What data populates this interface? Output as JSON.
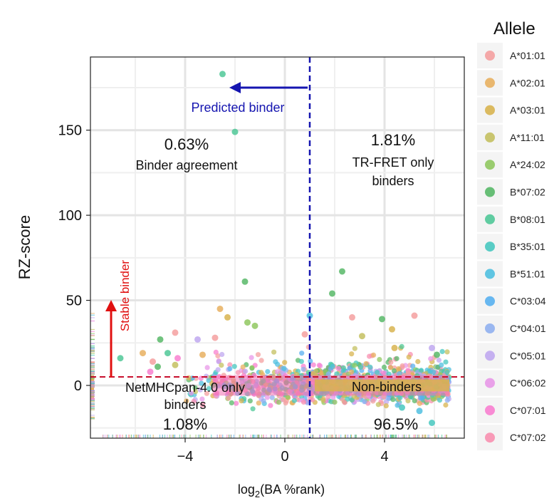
{
  "chart_data": {
    "type": "scatter",
    "title": "",
    "xlabel_main": "log",
    "xlabel_sub": "2",
    "xlabel_rest": "(BA %rank)",
    "ylabel": "RZ-score",
    "xlim": [
      -7.8,
      7.2
    ],
    "ylim": [
      -31,
      193
    ],
    "x_ticks": [
      -4,
      0,
      4
    ],
    "x_tick_labels": [
      "−4",
      "0",
      "4"
    ],
    "y_ticks": [
      0,
      50,
      100,
      150
    ],
    "y_tick_labels": [
      "0",
      "50",
      "100",
      "150"
    ],
    "grid": true,
    "thresholds": {
      "x": 1.0,
      "y": 5.0,
      "x_color": "#1515b0",
      "y_color": "#c8102e"
    },
    "legend": {
      "title": "Allele",
      "position": "right",
      "entries": [
        {
          "label": "A*01:01",
          "color": "#f4a0a0"
        },
        {
          "label": "A*02:01",
          "color": "#e8b060"
        },
        {
          "label": "A*03:01",
          "color": "#d8b450"
        },
        {
          "label": "A*11:01",
          "color": "#c4c060"
        },
        {
          "label": "A*24:02",
          "color": "#90c860"
        },
        {
          "label": "B*07:02",
          "color": "#58b868"
        },
        {
          "label": "B*08:01",
          "color": "#50c898"
        },
        {
          "label": "B*35:01",
          "color": "#48c8c0"
        },
        {
          "label": "B*51:01",
          "color": "#50c0e0"
        },
        {
          "label": "C*03:04",
          "color": "#58b0f0"
        },
        {
          "label": "C*04:01",
          "color": "#90b0f0"
        },
        {
          "label": "C*05:01",
          "color": "#c0a8f0"
        },
        {
          "label": "C*06:02",
          "color": "#e898e8"
        },
        {
          "label": "C*07:01",
          "color": "#f880d0"
        },
        {
          "label": "C*07:02",
          "color": "#f890b0"
        }
      ]
    },
    "quadrants": {
      "top_left": {
        "percent": "0.63%",
        "label": "Binder agreement"
      },
      "top_right": {
        "percent": "1.81%",
        "line1": "TR-FRET only",
        "line2": "binders"
      },
      "bottom_left": {
        "line1": "NetMHCpan-4.0 only",
        "line2": "binders",
        "percent": "1.08%"
      },
      "bottom_right": {
        "label": "Non-binders",
        "percent": "96.5%"
      }
    },
    "annotations": {
      "predicted_binder": "Predicted binder",
      "stable_binder": "Stable binder"
    },
    "highlighted_points": [
      {
        "x": -2.5,
        "y": 183,
        "color": "#50c898"
      },
      {
        "x": -2.0,
        "y": 149,
        "color": "#50c898"
      },
      {
        "x": -1.6,
        "y": 61,
        "color": "#58b868"
      },
      {
        "x": 2.3,
        "y": 67,
        "color": "#58b868"
      },
      {
        "x": 1.9,
        "y": 54,
        "color": "#58b868"
      },
      {
        "x": -2.6,
        "y": 45,
        "color": "#e8b060"
      },
      {
        "x": -2.3,
        "y": 40,
        "color": "#d8b450"
      },
      {
        "x": -1.5,
        "y": 37,
        "color": "#90c860"
      },
      {
        "x": 1.0,
        "y": 41,
        "color": "#50c0e0"
      },
      {
        "x": 2.7,
        "y": 40,
        "color": "#f4a0a0"
      },
      {
        "x": 3.9,
        "y": 39,
        "color": "#58b868"
      },
      {
        "x": 5.2,
        "y": 41,
        "color": "#f4a0a0"
      },
      {
        "x": 4.3,
        "y": 33,
        "color": "#d8b450"
      },
      {
        "x": -4.4,
        "y": 31,
        "color": "#f4a0a0"
      },
      {
        "x": -3.5,
        "y": 27,
        "color": "#c0a8f0"
      },
      {
        "x": -2.8,
        "y": 28,
        "color": "#f4a0a0"
      },
      {
        "x": -5.0,
        "y": 27,
        "color": "#58b868"
      },
      {
        "x": -5.7,
        "y": 19,
        "color": "#e8b060"
      },
      {
        "x": -6.6,
        "y": 16,
        "color": "#50c898"
      },
      {
        "x": -4.7,
        "y": 19,
        "color": "#50c898"
      },
      {
        "x": -4.3,
        "y": 16,
        "color": "#f880d0"
      },
      {
        "x": -5.3,
        "y": 14,
        "color": "#f4a0a0"
      },
      {
        "x": -5.1,
        "y": 11,
        "color": "#58b868"
      },
      {
        "x": -5.4,
        "y": 8,
        "color": "#f880d0"
      },
      {
        "x": -4.4,
        "y": 12,
        "color": "#c4c060"
      },
      {
        "x": -3.3,
        "y": 18,
        "color": "#e8b060"
      },
      {
        "x": -1.2,
        "y": 35,
        "color": "#90c860"
      },
      {
        "x": 0.8,
        "y": 30,
        "color": "#f4a0a0"
      },
      {
        "x": 3.1,
        "y": 29,
        "color": "#c4c060"
      },
      {
        "x": 5.9,
        "y": 22,
        "color": "#c0a8f0"
      },
      {
        "x": 4.4,
        "y": 22,
        "color": "#d8b450"
      },
      {
        "x": 6.1,
        "y": 18,
        "color": "#58b868"
      },
      {
        "x": 5.9,
        "y": -22,
        "color": "#48c8c0"
      },
      {
        "x": 5.4,
        "y": -15,
        "color": "#50c0e0"
      },
      {
        "x": 4.7,
        "y": -13,
        "color": "#48c8c0"
      }
    ]
  }
}
